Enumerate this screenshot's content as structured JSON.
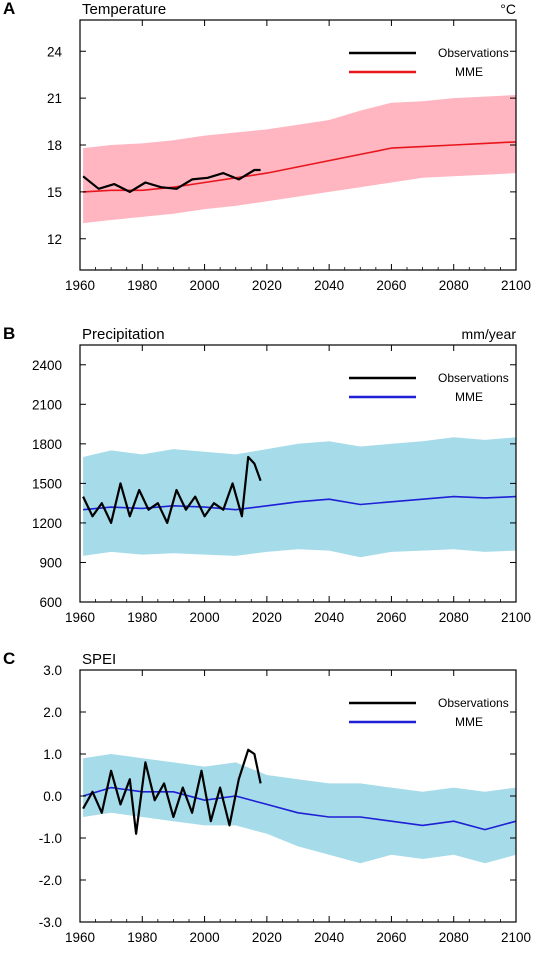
{
  "chart_data": [
    {
      "type": "line",
      "panel_label": "A",
      "title": "Temperature",
      "unit": "°C",
      "xlim": [
        1960,
        2100
      ],
      "ylim": [
        10,
        26
      ],
      "x_ticks": [
        1960,
        1980,
        2000,
        2020,
        2040,
        2060,
        2080,
        2100
      ],
      "y_ticks": [
        12,
        15,
        18,
        21,
        24
      ],
      "y_tick_labels": [
        "12",
        "15",
        "18",
        "21",
        "24"
      ],
      "legend": {
        "placement": "top-right",
        "entries": [
          "Observations",
          "MME"
        ]
      },
      "series": [
        {
          "name": "Observations",
          "color": "#000000",
          "x": [
            1961,
            1966,
            1971,
            1976,
            1981,
            1986,
            1991,
            1996,
            2001,
            2006,
            2011,
            2016,
            2018
          ],
          "y": [
            16.0,
            15.2,
            15.5,
            15.0,
            15.6,
            15.3,
            15.2,
            15.8,
            15.9,
            16.2,
            15.8,
            16.4,
            16.4
          ]
        },
        {
          "name": "MME",
          "color": "#e8161c",
          "x": [
            1961,
            1970,
            1980,
            1990,
            2000,
            2010,
            2020,
            2030,
            2040,
            2050,
            2060,
            2070,
            2080,
            2090,
            2100
          ],
          "y": [
            15.0,
            15.1,
            15.1,
            15.3,
            15.6,
            15.9,
            16.2,
            16.6,
            17.0,
            17.4,
            17.8,
            17.9,
            18.0,
            18.1,
            18.2
          ]
        },
        {
          "name": "MME range",
          "kind": "band",
          "color": "#ffb6c1",
          "x": [
            1961,
            1970,
            1980,
            1990,
            2000,
            2010,
            2020,
            2030,
            2040,
            2050,
            2060,
            2070,
            2080,
            2090,
            2100
          ],
          "lower": [
            13.0,
            13.2,
            13.4,
            13.6,
            13.9,
            14.1,
            14.4,
            14.7,
            15.0,
            15.3,
            15.6,
            15.9,
            16.0,
            16.1,
            16.2
          ],
          "upper": [
            17.8,
            18.0,
            18.1,
            18.3,
            18.6,
            18.8,
            19.0,
            19.3,
            19.6,
            20.2,
            20.7,
            20.8,
            21.0,
            21.1,
            21.2
          ]
        }
      ]
    },
    {
      "type": "line",
      "panel_label": "B",
      "title": "Precipitation",
      "unit": "mm/year",
      "xlim": [
        1960,
        2100
      ],
      "ylim": [
        600,
        2550
      ],
      "x_ticks": [
        1960,
        1980,
        2000,
        2020,
        2040,
        2060,
        2080,
        2100
      ],
      "y_ticks": [
        600,
        900,
        1200,
        1500,
        1800,
        2100,
        2400
      ],
      "y_tick_labels": [
        "600",
        "900",
        "1200",
        "1500",
        "1800",
        "2100",
        "2400"
      ],
      "legend": {
        "placement": "top-right",
        "entries": [
          "Observations",
          "MME"
        ]
      },
      "series": [
        {
          "name": "Observations",
          "color": "#000000",
          "x": [
            1961,
            1964,
            1967,
            1970,
            1973,
            1976,
            1979,
            1982,
            1985,
            1988,
            1991,
            1994,
            1997,
            2000,
            2003,
            2006,
            2009,
            2012,
            2014,
            2016,
            2018
          ],
          "y": [
            1400,
            1250,
            1350,
            1200,
            1500,
            1250,
            1450,
            1300,
            1350,
            1200,
            1450,
            1300,
            1400,
            1250,
            1350,
            1300,
            1500,
            1250,
            1700,
            1650,
            1520
          ]
        },
        {
          "name": "MME",
          "color": "#1f1fd6",
          "x": [
            1961,
            1970,
            1980,
            1990,
            2000,
            2010,
            2020,
            2030,
            2040,
            2050,
            2060,
            2070,
            2080,
            2090,
            2100
          ],
          "y": [
            1300,
            1320,
            1310,
            1330,
            1320,
            1300,
            1330,
            1360,
            1380,
            1340,
            1360,
            1380,
            1400,
            1390,
            1400
          ]
        },
        {
          "name": "MME range",
          "kind": "band",
          "color": "#a6dce9",
          "x": [
            1961,
            1970,
            1980,
            1990,
            2000,
            2010,
            2020,
            2030,
            2040,
            2050,
            2060,
            2070,
            2080,
            2090,
            2100
          ],
          "lower": [
            950,
            980,
            960,
            970,
            960,
            950,
            980,
            1000,
            990,
            940,
            980,
            990,
            1000,
            980,
            990
          ],
          "upper": [
            1700,
            1750,
            1720,
            1760,
            1740,
            1720,
            1760,
            1800,
            1820,
            1780,
            1800,
            1820,
            1850,
            1830,
            1850
          ]
        }
      ]
    },
    {
      "type": "line",
      "panel_label": "C",
      "title": "SPEI",
      "unit": "",
      "xlim": [
        1960,
        2100
      ],
      "ylim": [
        -3,
        3
      ],
      "x_ticks": [
        1960,
        1980,
        2000,
        2020,
        2040,
        2060,
        2080,
        2100
      ],
      "y_ticks": [
        -3,
        -2,
        -1,
        0,
        1,
        2,
        3
      ],
      "y_tick_labels": [
        "-3.0",
        "-2.0",
        "-1.0",
        "0.0",
        "1.0",
        "2.0",
        "3.0"
      ],
      "legend": {
        "placement": "top-right",
        "entries": [
          "Observations",
          "MME"
        ]
      },
      "series": [
        {
          "name": "Observations",
          "color": "#000000",
          "x": [
            1961,
            1964,
            1967,
            1970,
            1973,
            1976,
            1978,
            1981,
            1984,
            1987,
            1990,
            1993,
            1996,
            1999,
            2002,
            2005,
            2008,
            2011,
            2014,
            2016,
            2018
          ],
          "y": [
            -0.3,
            0.1,
            -0.4,
            0.6,
            -0.2,
            0.4,
            -0.9,
            0.8,
            -0.1,
            0.3,
            -0.5,
            0.2,
            -0.4,
            0.6,
            -0.6,
            0.2,
            -0.7,
            0.4,
            1.1,
            1.0,
            0.3
          ]
        },
        {
          "name": "MME",
          "color": "#1f1fd6",
          "x": [
            1961,
            1970,
            1980,
            1990,
            2000,
            2010,
            2020,
            2030,
            2040,
            2050,
            2060,
            2070,
            2080,
            2090,
            2100
          ],
          "y": [
            0.0,
            0.2,
            0.1,
            0.1,
            -0.1,
            0.0,
            -0.2,
            -0.4,
            -0.5,
            -0.5,
            -0.6,
            -0.7,
            -0.6,
            -0.8,
            -0.6
          ]
        },
        {
          "name": "MME range",
          "kind": "band",
          "color": "#a6dce9",
          "x": [
            1961,
            1970,
            1980,
            1990,
            2000,
            2010,
            2020,
            2030,
            2040,
            2050,
            2060,
            2070,
            2080,
            2090,
            2100
          ],
          "lower": [
            -0.5,
            -0.4,
            -0.5,
            -0.6,
            -0.7,
            -0.7,
            -0.9,
            -1.2,
            -1.4,
            -1.6,
            -1.4,
            -1.5,
            -1.4,
            -1.6,
            -1.4
          ],
          "upper": [
            0.9,
            1.0,
            0.9,
            0.8,
            0.7,
            0.8,
            0.5,
            0.4,
            0.3,
            0.3,
            0.2,
            0.1,
            0.2,
            0.1,
            0.2
          ]
        }
      ]
    }
  ]
}
